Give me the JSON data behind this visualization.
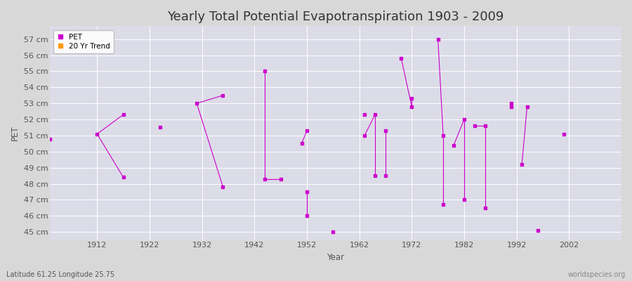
{
  "title": "Yearly Total Potential Evapotranspiration 1903 - 2009",
  "xlabel": "Year",
  "ylabel": "PET",
  "subtitle_left": "Latitude 61.25 Longitude 25.75",
  "subtitle_right": "worldspecies.org",
  "ylim": [
    44.5,
    57.8
  ],
  "ytick_labels": [
    "45 cm",
    "46 cm",
    "47 cm",
    "48 cm",
    "49 cm",
    "50 cm",
    "51 cm",
    "52 cm",
    "53 cm",
    "54 cm",
    "55 cm",
    "56 cm",
    "57 cm"
  ],
  "ytick_values": [
    45,
    46,
    47,
    48,
    49,
    50,
    51,
    52,
    53,
    54,
    55,
    56,
    57
  ],
  "xlim": [
    1903,
    2012
  ],
  "xtick_values": [
    1912,
    1922,
    1932,
    1942,
    1952,
    1962,
    1972,
    1982,
    1992,
    2002
  ],
  "pet_color": "#cc00cc",
  "trend_color": "#ff9900",
  "fig_bg_color": "#d8d8d8",
  "plot_bg_color": "#dcdce8",
  "grid_color": "#ffffff",
  "title_fontsize": 13,
  "label_fontsize": 8.5,
  "tick_fontsize": 8,
  "pet_data": [
    [
      1903,
      50.8
    ],
    [
      1912,
      51.1
    ],
    [
      1917,
      52.3
    ],
    [
      1917,
      48.4
    ],
    [
      1924,
      51.5
    ],
    [
      1931,
      53.0
    ],
    [
      1936,
      53.5
    ],
    [
      1936,
      47.8
    ],
    [
      1944,
      55.0
    ],
    [
      1944,
      48.3
    ],
    [
      1947,
      48.3
    ],
    [
      1951,
      50.5
    ],
    [
      1952,
      51.3
    ],
    [
      1952,
      47.5
    ],
    [
      1952,
      46.0
    ],
    [
      1957,
      45.0
    ],
    [
      1963,
      51.0
    ],
    [
      1963,
      52.3
    ],
    [
      1965,
      52.3
    ],
    [
      1965,
      48.5
    ],
    [
      1967,
      51.3
    ],
    [
      1967,
      48.5
    ],
    [
      1970,
      55.8
    ],
    [
      1972,
      52.8
    ],
    [
      1972,
      53.3
    ],
    [
      1977,
      57.0
    ],
    [
      1978,
      51.0
    ],
    [
      1978,
      46.7
    ],
    [
      1980,
      50.4
    ],
    [
      1982,
      52.0
    ],
    [
      1982,
      47.0
    ],
    [
      1984,
      51.6
    ],
    [
      1986,
      51.6
    ],
    [
      1986,
      46.5
    ],
    [
      1991,
      53.0
    ],
    [
      1991,
      52.8
    ],
    [
      1993,
      49.2
    ],
    [
      1994,
      52.8
    ],
    [
      1996,
      45.1
    ],
    [
      2001,
      51.1
    ]
  ],
  "line_segments": [
    [
      [
        1912,
        51.1
      ],
      [
        1917,
        52.3
      ]
    ],
    [
      [
        1917,
        48.4
      ],
      [
        1912,
        51.1
      ]
    ],
    [
      [
        1931,
        53.0
      ],
      [
        1936,
        53.5
      ]
    ],
    [
      [
        1936,
        47.8
      ],
      [
        1931,
        53.0
      ]
    ],
    [
      [
        1944,
        55.0
      ],
      [
        1944,
        48.3
      ]
    ],
    [
      [
        1944,
        48.3
      ],
      [
        1947,
        48.3
      ]
    ],
    [
      [
        1951,
        50.5
      ],
      [
        1952,
        51.3
      ]
    ],
    [
      [
        1952,
        47.5
      ],
      [
        1952,
        46.0
      ]
    ],
    [
      [
        1963,
        51.0
      ],
      [
        1965,
        52.3
      ]
    ],
    [
      [
        1965,
        52.3
      ],
      [
        1965,
        48.5
      ]
    ],
    [
      [
        1967,
        51.3
      ],
      [
        1967,
        48.5
      ]
    ],
    [
      [
        1970,
        55.8
      ],
      [
        1972,
        52.8
      ]
    ],
    [
      [
        1972,
        52.8
      ],
      [
        1972,
        53.3
      ]
    ],
    [
      [
        1977,
        57.0
      ],
      [
        1978,
        51.0
      ]
    ],
    [
      [
        1978,
        51.0
      ],
      [
        1978,
        46.7
      ]
    ],
    [
      [
        1980,
        50.4
      ],
      [
        1982,
        52.0
      ]
    ],
    [
      [
        1982,
        52.0
      ],
      [
        1982,
        47.0
      ]
    ],
    [
      [
        1984,
        51.6
      ],
      [
        1986,
        51.6
      ]
    ],
    [
      [
        1986,
        51.6
      ],
      [
        1986,
        46.5
      ]
    ],
    [
      [
        1991,
        53.0
      ],
      [
        1991,
        52.8
      ]
    ],
    [
      [
        1993,
        49.2
      ],
      [
        1994,
        52.8
      ]
    ]
  ],
  "isolated_points": [
    [
      1903,
      50.8
    ],
    [
      1924,
      51.5
    ],
    [
      1947,
      48.3
    ],
    [
      1957,
      45.0
    ],
    [
      1996,
      45.1
    ],
    [
      2001,
      51.1
    ]
  ]
}
